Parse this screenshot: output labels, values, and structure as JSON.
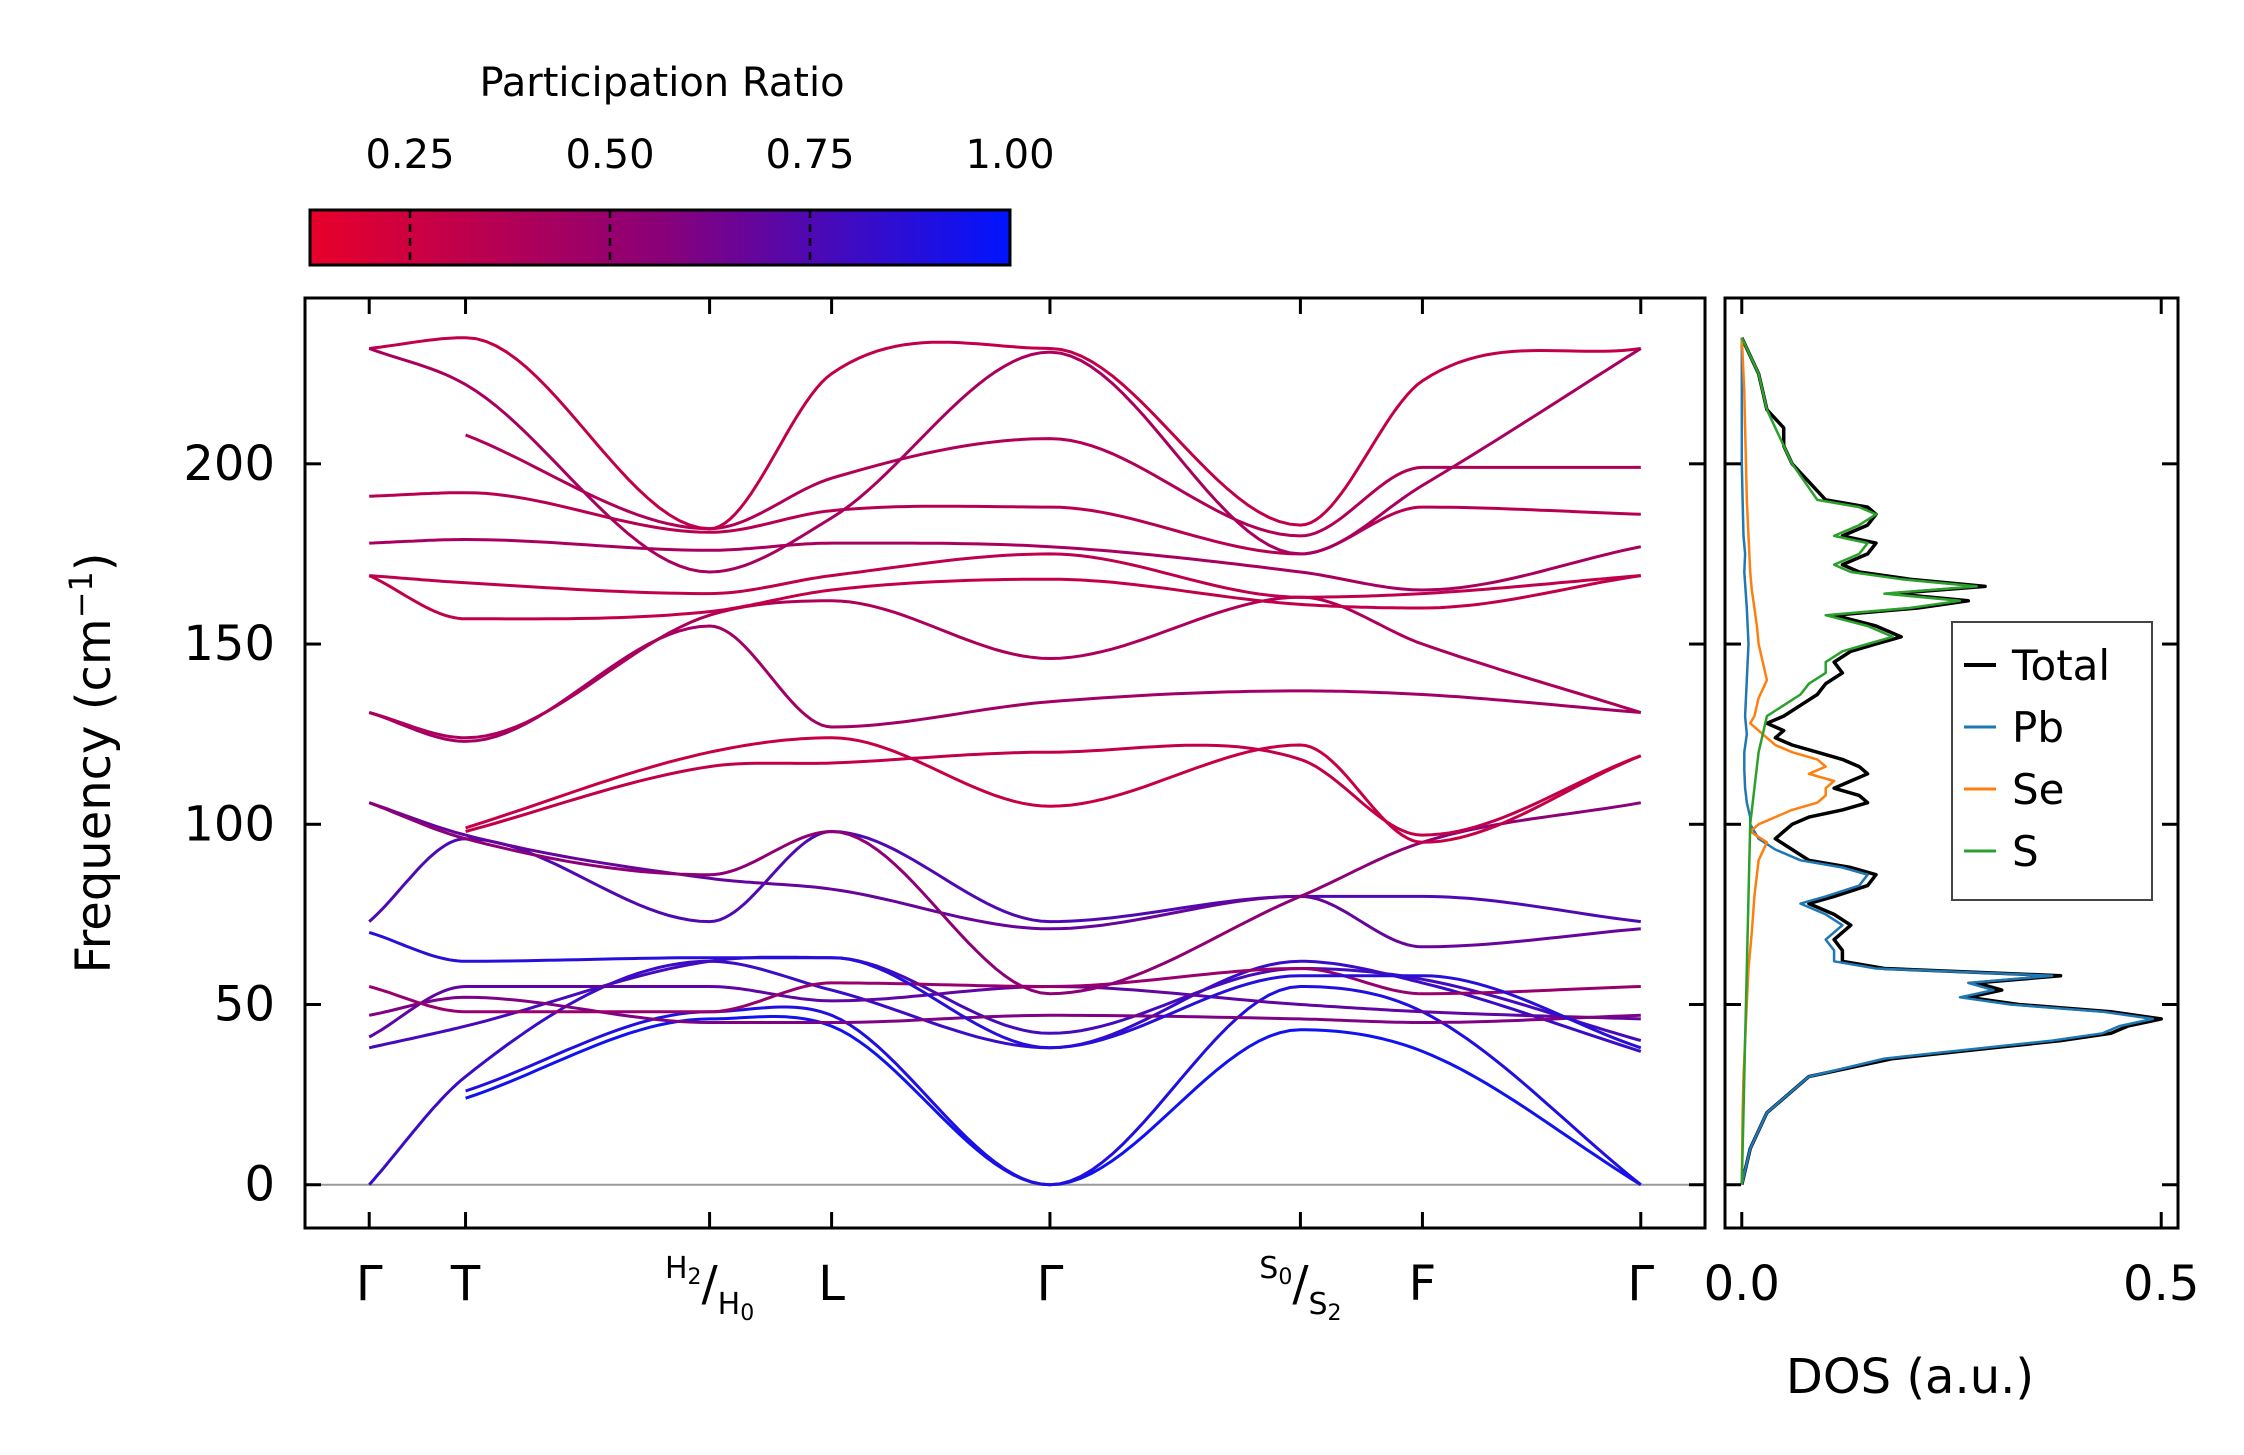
{
  "chart_data": [
    {
      "type": "line",
      "subtype": "phonon-band-structure",
      "ylabel_main": "Frequency (cm",
      "ylabel_sup": "−1",
      "ylabel_end": ")",
      "ylim": [
        -12,
        246
      ],
      "yticks": [
        0,
        50,
        100,
        150,
        200
      ],
      "grid": false,
      "colormap_low": "#e8002a",
      "colormap_mid": "#8a0078",
      "colormap_high": "#0014ff",
      "zero_line_color": "#999999",
      "kpoints": [
        {
          "pos": 0.0,
          "label": "Γ"
        },
        {
          "pos": 0.75,
          "label": "T"
        },
        {
          "pos": 2.65,
          "label": "H",
          "sub": "2",
          "slash_label": "H",
          "slash_sub": "0"
        },
        {
          "pos": 3.6,
          "label": "L"
        },
        {
          "pos": 5.3,
          "label": "Γ"
        },
        {
          "pos": 7.25,
          "label": "S",
          "sub": "0",
          "slash_label": "S",
          "slash_sub": "2"
        },
        {
          "pos": 8.2,
          "label": "F"
        },
        {
          "pos": 9.9,
          "label": "Γ"
        }
      ],
      "xlim": [
        -0.5,
        10.4
      ],
      "bands": [
        {
          "pr": 0.95,
          "x": [
            0.75,
            2.65,
            3.6,
            5.3,
            7.25,
            8.2,
            9.9
          ],
          "y": [
            24,
            46,
            44,
            0,
            43,
            37,
            0
          ]
        },
        {
          "pr": 0.9,
          "x": [
            0.75,
            2.65,
            3.6,
            5.3,
            7.25,
            8.2,
            9.9
          ],
          "y": [
            26,
            48,
            47,
            0,
            55,
            48,
            0
          ]
        },
        {
          "pr": 0.82,
          "x": [
            0.0,
            0.75,
            2.65,
            3.6,
            5.3,
            7.25,
            8.2,
            9.9
          ],
          "y": [
            0,
            30,
            62,
            54,
            38,
            62,
            56,
            37
          ]
        },
        {
          "pr": 0.78,
          "x": [
            0.0,
            0.75,
            2.65,
            3.6,
            5.3,
            7.25,
            8.2,
            9.9
          ],
          "y": [
            38,
            44,
            62,
            63,
            42,
            60,
            57,
            40
          ]
        },
        {
          "pr": 0.7,
          "x": [
            0.0,
            0.75,
            2.65,
            3.6,
            5.3,
            7.25,
            8.2,
            9.9
          ],
          "y": [
            41,
            55,
            55,
            51,
            55,
            50,
            48,
            46
          ]
        },
        {
          "pr": 0.6,
          "x": [
            0.0,
            0.75,
            2.65,
            3.6,
            5.3,
            7.25,
            8.2,
            9.9
          ],
          "y": [
            47,
            52,
            45,
            45,
            47,
            46,
            45,
            47
          ]
        },
        {
          "pr": 0.5,
          "x": [
            0.0,
            0.75,
            2.65,
            3.6,
            5.3,
            7.25,
            8.2,
            9.9
          ],
          "y": [
            55,
            48,
            48,
            56,
            55,
            60,
            53,
            55
          ]
        },
        {
          "pr": 0.88,
          "x": [
            0.0,
            0.75,
            2.65,
            3.6,
            5.3,
            7.25,
            8.2,
            9.9
          ],
          "y": [
            70,
            62,
            63,
            63,
            38,
            58,
            58,
            38
          ]
        },
        {
          "pr": 0.75,
          "x": [
            0.0,
            0.75,
            2.65,
            3.6,
            5.3,
            7.25,
            8.2,
            9.9
          ],
          "y": [
            73,
            96,
            73,
            98,
            73,
            80,
            80,
            73
          ]
        },
        {
          "pr": 0.68,
          "x": [
            0.0,
            0.75,
            2.65,
            3.6,
            5.3,
            7.25,
            8.2,
            9.9
          ],
          "y": [
            106,
            97,
            85,
            82,
            71,
            80,
            66,
            71
          ]
        },
        {
          "pr": 0.55,
          "x": [
            0.0,
            0.75,
            2.65,
            3.6,
            5.3,
            7.25,
            8.2,
            9.9
          ],
          "y": [
            106,
            96,
            86,
            98,
            53,
            80,
            95,
            106
          ]
        },
        {
          "pr": 0.3,
          "x": [
            0.75,
            2.65,
            3.6,
            5.3,
            7.25,
            8.2,
            9.9
          ],
          "y": [
            98,
            116,
            117,
            120,
            118,
            97,
            119
          ]
        },
        {
          "pr": 0.28,
          "x": [
            0.75,
            2.65,
            3.6,
            5.3,
            7.25,
            8.2,
            9.9
          ],
          "y": [
            99,
            120,
            124,
            105,
            122,
            95,
            119
          ]
        },
        {
          "pr": 0.45,
          "x": [
            0.0,
            0.75,
            2.65,
            3.6,
            5.3,
            7.25,
            8.2,
            9.9
          ],
          "y": [
            131,
            123,
            155,
            127,
            134,
            137,
            136,
            131
          ]
        },
        {
          "pr": 0.4,
          "x": [
            0.0,
            0.75,
            2.65,
            3.6,
            5.3,
            7.25,
            8.2,
            9.9
          ],
          "y": [
            131,
            124,
            158,
            162,
            146,
            163,
            150,
            131
          ]
        },
        {
          "pr": 0.3,
          "x": [
            0.0,
            0.75,
            2.65,
            3.6,
            5.3,
            7.25,
            8.2,
            9.9
          ],
          "y": [
            169,
            157,
            159,
            165,
            168,
            161,
            160,
            169
          ]
        },
        {
          "pr": 0.32,
          "x": [
            0.0,
            0.75,
            2.65,
            3.6,
            5.3,
            7.25,
            8.2,
            9.9
          ],
          "y": [
            169,
            167,
            164,
            169,
            175,
            163,
            164,
            169
          ]
        },
        {
          "pr": 0.42,
          "x": [
            0.0,
            0.75,
            2.65,
            3.6,
            5.3,
            7.25,
            8.2,
            9.9
          ],
          "y": [
            178,
            179,
            176,
            178,
            177,
            170,
            165,
            177
          ]
        },
        {
          "pr": 0.35,
          "x": [
            0.0,
            0.75,
            2.65,
            3.6,
            5.3,
            7.25,
            8.2,
            9.9
          ],
          "y": [
            191,
            192,
            181,
            187,
            188,
            175,
            188,
            186
          ]
        },
        {
          "pr": 0.38,
          "x": [
            0.75,
            2.65,
            3.6,
            5.3,
            7.25,
            8.2,
            9.9
          ],
          "y": [
            208,
            182,
            196,
            207,
            180,
            199,
            199
          ]
        },
        {
          "pr": 0.3,
          "x": [
            0.0,
            0.75,
            2.65,
            3.6,
            5.3,
            7.25,
            8.2,
            9.9
          ],
          "y": [
            232,
            235,
            182,
            225,
            232,
            183,
            223,
            232
          ]
        },
        {
          "pr": 0.42,
          "x": [
            0.0,
            0.75,
            2.65,
            3.6,
            5.3,
            7.25,
            8.2,
            9.9
          ],
          "y": [
            232,
            222,
            170,
            185,
            231,
            175,
            194,
            232
          ]
        }
      ]
    },
    {
      "type": "line",
      "subtype": "density-of-states",
      "xlabel": "DOS (a.u.)",
      "xlim": [
        -0.02,
        0.52
      ],
      "xticks": [
        0.0,
        0.5
      ],
      "xtick_labels": [
        "0.0",
        "0.5"
      ],
      "ylim": [
        -12,
        246
      ],
      "grid": false,
      "legend_position": "center-right",
      "series": [
        {
          "name": "Total",
          "color": "#000000",
          "y": [
            0,
            10,
            20,
            30,
            35,
            38,
            40,
            42,
            44,
            46,
            48,
            50,
            52,
            54,
            56,
            58,
            60,
            62,
            65,
            68,
            72,
            75,
            78,
            80,
            83,
            86,
            88,
            90,
            93,
            96,
            98,
            100,
            102,
            104,
            106,
            108,
            110,
            112,
            114,
            116,
            118,
            120,
            122,
            124,
            126,
            128,
            130,
            133,
            136,
            139,
            142,
            145,
            148,
            150,
            152,
            155,
            158,
            160,
            162,
            164,
            166,
            168,
            170,
            172,
            175,
            178,
            180,
            183,
            186,
            188,
            190,
            195,
            200,
            205,
            210,
            215,
            220,
            225,
            230,
            235
          ],
          "v": [
            0,
            0.01,
            0.03,
            0.08,
            0.18,
            0.3,
            0.38,
            0.44,
            0.46,
            0.5,
            0.44,
            0.33,
            0.27,
            0.31,
            0.28,
            0.38,
            0.17,
            0.12,
            0.12,
            0.11,
            0.13,
            0.11,
            0.08,
            0.11,
            0.15,
            0.16,
            0.13,
            0.08,
            0.06,
            0.04,
            0.05,
            0.06,
            0.08,
            0.12,
            0.15,
            0.14,
            0.11,
            0.13,
            0.15,
            0.14,
            0.12,
            0.09,
            0.06,
            0.04,
            0.05,
            0.03,
            0.05,
            0.07,
            0.09,
            0.1,
            0.12,
            0.11,
            0.13,
            0.16,
            0.19,
            0.16,
            0.11,
            0.21,
            0.27,
            0.18,
            0.29,
            0.2,
            0.14,
            0.12,
            0.15,
            0.16,
            0.12,
            0.15,
            0.16,
            0.15,
            0.1,
            0.08,
            0.06,
            0.05,
            0.05,
            0.03,
            0.025,
            0.02,
            0.01,
            0.0
          ]
        },
        {
          "name": "Pb",
          "color": "#1f77b4",
          "y": [
            0,
            10,
            20,
            30,
            35,
            38,
            40,
            42,
            44,
            46,
            48,
            50,
            52,
            54,
            56,
            58,
            60,
            62,
            65,
            68,
            72,
            75,
            78,
            80,
            83,
            86,
            88,
            90,
            93,
            96,
            98,
            100,
            102,
            104,
            106,
            108,
            110,
            115,
            120,
            125,
            130,
            140,
            150,
            160,
            170,
            175,
            180,
            190,
            200,
            235
          ],
          "v": [
            0,
            0.01,
            0.03,
            0.08,
            0.17,
            0.29,
            0.37,
            0.43,
            0.45,
            0.49,
            0.43,
            0.32,
            0.26,
            0.3,
            0.27,
            0.37,
            0.16,
            0.11,
            0.11,
            0.1,
            0.12,
            0.1,
            0.07,
            0.1,
            0.14,
            0.15,
            0.12,
            0.07,
            0.04,
            0.02,
            0.015,
            0.01,
            0.01,
            0.008,
            0.006,
            0.005,
            0.004,
            0.003,
            0.003,
            0.006,
            0.004,
            0.006,
            0.008,
            0.006,
            0.003,
            0.004,
            0.002,
            0.001,
            0.0,
            0.0
          ]
        },
        {
          "name": "Se",
          "color": "#ff7f0e",
          "y": [
            0,
            20,
            30,
            40,
            50,
            60,
            70,
            80,
            90,
            95,
            98,
            100,
            102,
            104,
            106,
            108,
            110,
            112,
            114,
            116,
            118,
            120,
            122,
            124,
            126,
            128,
            130,
            135,
            140,
            145,
            150,
            155,
            160,
            165,
            170,
            180,
            190,
            200,
            210,
            220,
            235
          ],
          "v": [
            0,
            0.001,
            0.002,
            0.004,
            0.006,
            0.008,
            0.012,
            0.015,
            0.02,
            0.03,
            0.01,
            0.02,
            0.04,
            0.06,
            0.09,
            0.1,
            0.1,
            0.11,
            0.08,
            0.1,
            0.09,
            0.06,
            0.04,
            0.03,
            0.02,
            0.01,
            0.015,
            0.02,
            0.03,
            0.025,
            0.02,
            0.018,
            0.015,
            0.012,
            0.01,
            0.008,
            0.006,
            0.005,
            0.004,
            0.003,
            0.0
          ]
        },
        {
          "name": "S",
          "color": "#2ca02c",
          "y": [
            0,
            20,
            40,
            60,
            80,
            100,
            110,
            120,
            125,
            130,
            133,
            136,
            139,
            142,
            145,
            148,
            150,
            152,
            155,
            158,
            160,
            162,
            164,
            166,
            168,
            170,
            172,
            175,
            178,
            180,
            183,
            186,
            188,
            190,
            195,
            200,
            205,
            210,
            215,
            220,
            225,
            230,
            235
          ],
          "v": [
            0,
            0.002,
            0.004,
            0.006,
            0.008,
            0.01,
            0.015,
            0.02,
            0.025,
            0.03,
            0.05,
            0.07,
            0.08,
            0.1,
            0.1,
            0.12,
            0.15,
            0.18,
            0.15,
            0.1,
            0.2,
            0.26,
            0.17,
            0.28,
            0.19,
            0.13,
            0.11,
            0.14,
            0.15,
            0.11,
            0.14,
            0.16,
            0.14,
            0.09,
            0.075,
            0.06,
            0.05,
            0.04,
            0.03,
            0.025,
            0.02,
            0.01,
            0.0
          ]
        }
      ]
    }
  ],
  "colorbar": {
    "title": "Participation Ratio",
    "range": [
      0.125,
      1.0
    ],
    "ticks": [
      0.25,
      0.5,
      0.75,
      1.0
    ],
    "tick_labels": [
      "0.25",
      "0.50",
      "0.75",
      "1.00"
    ]
  }
}
